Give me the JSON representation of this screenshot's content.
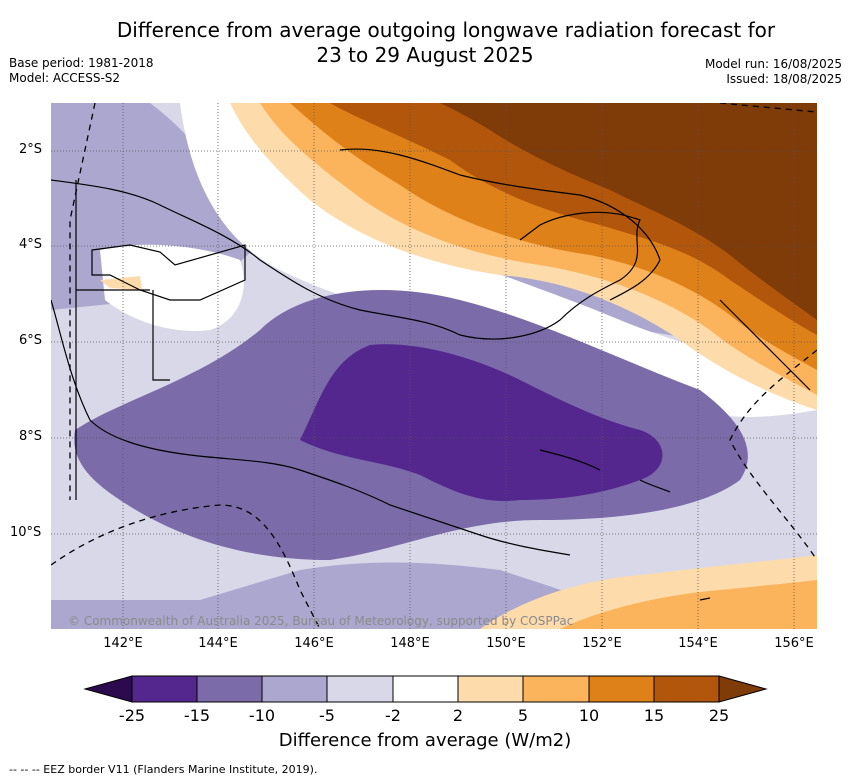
{
  "title_line1": "Difference from average outgoing longwave radiation forecast for",
  "title_line2": "23 to 29 August 2025",
  "base_period": "Base period: 1981-2018",
  "model": "Model: ACCESS-S2",
  "model_run": "Model run: 16/08/2025",
  "issued": "Issued: 18/08/2025",
  "copyright": "© Commonwealth of Australia 2025, Bureau of Meteorology, supported by COSPPac",
  "lon_ticks": [
    "142°E",
    "144°E",
    "146°E",
    "148°E",
    "150°E",
    "152°E",
    "154°E",
    "156°E"
  ],
  "lat_ticks": [
    "2°S",
    "4°S",
    "6°S",
    "8°S",
    "10°S"
  ],
  "colorbar": {
    "title": "Difference from average (W/m2)",
    "levels": [
      "-25",
      "-15",
      "-10",
      "-5",
      "-2",
      "2",
      "5",
      "10",
      "15",
      "25"
    ],
    "colors": [
      "#2d0a4e",
      "#54278f",
      "#7b6ba8",
      "#aba7ce",
      "#d8d8e8",
      "#ffffff",
      "#fddbab",
      "#fbb35c",
      "#df8119",
      "#b1560a",
      "#7f3b08"
    ]
  },
  "footer": "--  --  -- EEZ border V11 (Flanders Marine Institute, 2019)."
}
